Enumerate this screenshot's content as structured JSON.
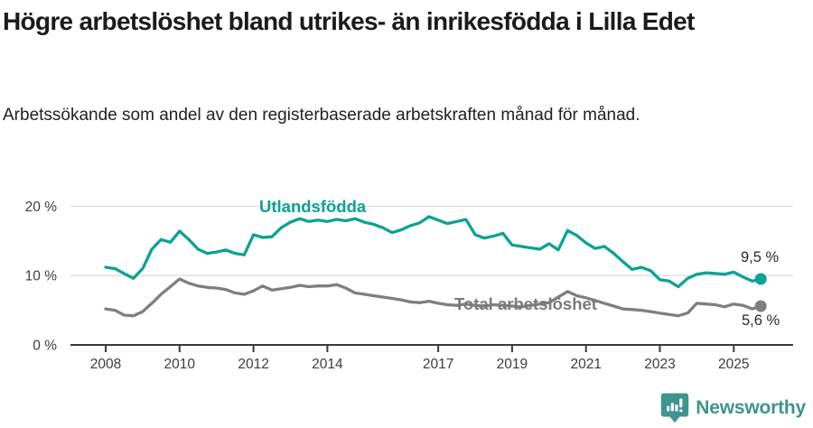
{
  "header": {
    "title": "Högre arbetslöshet bland utrikes- än inrikesfödda i Lilla Edet",
    "subtitle": "Arbetssökande som andel av den registerbaserade arbetskraften månad för månad."
  },
  "chart_data": {
    "type": "line",
    "unit": "%",
    "grid": true,
    "legend_position": "inline-labels",
    "ylim": [
      0,
      21.5
    ],
    "xlim": [
      2007.8,
      2026.2
    ],
    "x_start": 2008.0,
    "x_step": 0.25,
    "x_end": 2025.73,
    "y_ticks": [
      {
        "value": 0,
        "label": "0 %"
      },
      {
        "value": 10,
        "label": "10 %"
      },
      {
        "value": 20,
        "label": "20 %"
      }
    ],
    "x_ticks": [
      {
        "value": 2008,
        "label": "2008"
      },
      {
        "value": 2010,
        "label": "2010"
      },
      {
        "value": 2012,
        "label": "2012"
      },
      {
        "value": 2014,
        "label": "2014"
      },
      {
        "value": 2017,
        "label": "2017"
      },
      {
        "value": 2019,
        "label": "2019"
      },
      {
        "value": 2021,
        "label": "2021"
      },
      {
        "value": 2023,
        "label": "2023"
      },
      {
        "value": 2025,
        "label": "2025"
      }
    ],
    "series": [
      {
        "name": "Utlandsfödda",
        "color": "#0ca295",
        "end_label": "9,5 %",
        "end_value": 9.5,
        "values": [
          11.2,
          11.0,
          10.3,
          9.6,
          11.0,
          13.8,
          15.2,
          14.8,
          16.4,
          15.2,
          13.8,
          13.2,
          13.4,
          13.7,
          13.2,
          13.0,
          15.9,
          15.5,
          15.6,
          16.9,
          17.7,
          18.2,
          17.8,
          18.0,
          17.8,
          18.1,
          17.9,
          18.2,
          17.7,
          17.4,
          16.9,
          16.2,
          16.6,
          17.2,
          17.6,
          18.5,
          18.0,
          17.5,
          17.8,
          18.1,
          15.9,
          15.4,
          15.7,
          16.1,
          14.4,
          14.2,
          14.0,
          13.8,
          14.6,
          13.7,
          16.5,
          15.8,
          14.7,
          13.9,
          14.2,
          13.2,
          12.0,
          10.9,
          11.2,
          10.7,
          9.4,
          9.2,
          8.4,
          9.6,
          10.2,
          10.4,
          10.3,
          10.2,
          10.5,
          9.8,
          9.2
        ]
      },
      {
        "name": "Total arbetslöshet",
        "color": "#7f7f7f",
        "end_label": "5,6 %",
        "end_value": 5.6,
        "values": [
          5.2,
          5.0,
          4.3,
          4.2,
          4.8,
          6.0,
          7.3,
          8.4,
          9.5,
          8.9,
          8.5,
          8.3,
          8.2,
          8.0,
          7.5,
          7.3,
          7.8,
          8.5,
          7.9,
          8.1,
          8.3,
          8.6,
          8.4,
          8.5,
          8.5,
          8.7,
          8.2,
          7.5,
          7.3,
          7.1,
          6.9,
          6.7,
          6.5,
          6.2,
          6.1,
          6.3,
          6.0,
          5.8,
          5.7,
          5.9,
          5.7,
          5.6,
          5.8,
          5.7,
          5.6,
          5.5,
          5.7,
          5.9,
          6.1,
          6.9,
          7.7,
          7.1,
          6.8,
          6.4,
          6.0,
          5.6,
          5.2,
          5.1,
          5.0,
          4.8,
          4.6,
          4.4,
          4.2,
          4.6,
          6.0,
          5.9,
          5.8,
          5.5,
          5.9,
          5.7,
          5.2
        ]
      }
    ]
  },
  "footer": {
    "brand": "Newsworthy"
  }
}
